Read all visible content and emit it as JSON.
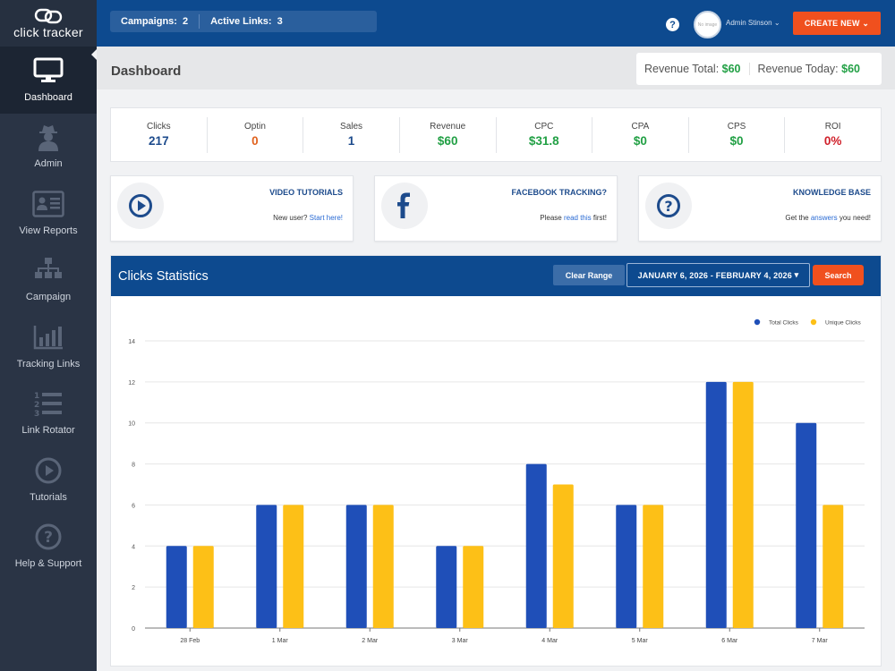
{
  "app": {
    "logo_text": "click tracker"
  },
  "sidebar": {
    "items": [
      {
        "label": "Dashboard",
        "icon": "monitor-icon",
        "active": true
      },
      {
        "label": "Admin",
        "icon": "admin-spy-icon"
      },
      {
        "label": "View Reports",
        "icon": "reports-card-icon"
      },
      {
        "label": "Campaign",
        "icon": "campaign-hierarchy-icon"
      },
      {
        "label": "Tracking Links",
        "icon": "bar-chart-icon"
      },
      {
        "label": "Link Rotator",
        "icon": "numbered-list-icon"
      },
      {
        "label": "Tutorials",
        "icon": "play-circle-icon"
      },
      {
        "label": "Help & Support",
        "icon": "question-circle-icon"
      }
    ]
  },
  "topbar": {
    "campaigns_label": "Campaigns:",
    "campaigns_value": "2",
    "active_links_label": "Active Links:",
    "active_links_value": "3",
    "avatar_text": "No image",
    "user_name": "Admin Stinson",
    "create_label": "CREATE NEW"
  },
  "page": {
    "title": "Dashboard",
    "revenue_total_label": "Revenue Total:",
    "revenue_total_value": "$60",
    "revenue_today_label": "Revenue Today:",
    "revenue_today_value": "$60"
  },
  "stats": [
    {
      "label": "Clicks",
      "value": "217",
      "color": "#1d4b8c"
    },
    {
      "label": "Optin",
      "value": "0",
      "color": "#e0621e"
    },
    {
      "label": "Sales",
      "value": "1",
      "color": "#1d4b8c"
    },
    {
      "label": "Revenue",
      "value": "$60",
      "color": "#22a045"
    },
    {
      "label": "CPC",
      "value": "$31.8",
      "color": "#22a045"
    },
    {
      "label": "CPA",
      "value": "$0",
      "color": "#22a045"
    },
    {
      "label": "CPS",
      "value": "$0",
      "color": "#22a045"
    },
    {
      "label": "ROI",
      "value": "0%",
      "color": "#d0202a"
    }
  ],
  "cards": [
    {
      "title": "VIDEO TUTORIALS",
      "pre": "New user? ",
      "link": "Start here!",
      "post": "",
      "icon": "play-circle-icon"
    },
    {
      "title": "FACEBOOK TRACKING?",
      "pre": "Please ",
      "link": "read this",
      "post": " first!",
      "icon": "facebook-icon"
    },
    {
      "title": "KNOWLEDGE BASE",
      "pre": "Get the ",
      "link": "answers",
      "post": " you need!",
      "icon": "question-circle-icon"
    }
  ],
  "clicks_panel": {
    "title": "Clicks Statistics",
    "clear_label": "Clear Range",
    "date_range": "JANUARY 6, 2026 - FEBRUARY 4, 2026",
    "search_label": "Search"
  },
  "chart_data": {
    "type": "bar",
    "categories": [
      "28 Feb",
      "1 Mar",
      "2 Mar",
      "3 Mar",
      "4 Mar",
      "5 Mar",
      "6 Mar",
      "7 Mar"
    ],
    "series": [
      {
        "name": "Total Clicks",
        "values": [
          4,
          6,
          6,
          4,
          8,
          6,
          12,
          10
        ],
        "color": "#1f4fb8"
      },
      {
        "name": "Unique Clicks",
        "values": [
          4,
          6,
          6,
          4,
          7,
          6,
          12,
          6
        ],
        "color": "#fdc017"
      }
    ],
    "ylim": [
      0,
      14
    ],
    "yticks": [
      0,
      2,
      4,
      6,
      8,
      10,
      12,
      14
    ],
    "grid": true,
    "legend": "top-right"
  }
}
